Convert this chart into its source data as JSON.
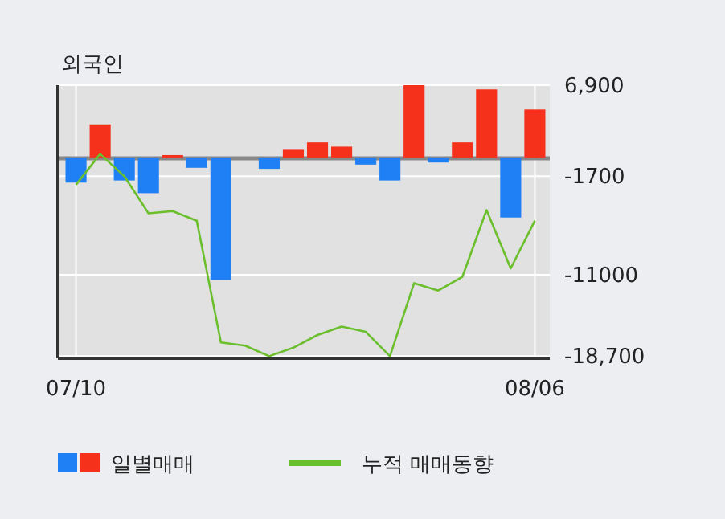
{
  "chart_data": {
    "type": "bar",
    "title": "외국인",
    "categories": [
      "07/10",
      null,
      null,
      null,
      null,
      null,
      null,
      null,
      null,
      null,
      null,
      null,
      null,
      null,
      null,
      null,
      null,
      null,
      null,
      "08/06"
    ],
    "series": [
      {
        "name": "일별매매",
        "colors": [
          "#1f7ff5",
          "#f5311c",
          "#1f7ff5",
          "#1f7ff5",
          "#f5311c",
          "#1f7ff5",
          "#1f7ff5",
          "#1f7ff5",
          "#1f7ff5",
          "#f5311c",
          "#f5311c",
          "#f5311c",
          "#1f7ff5",
          "#1f7ff5",
          "#f5311c",
          "#1f7ff5",
          "#f5311c",
          "#f5311c",
          "#1f7ff5",
          "#f5311c"
        ],
        "values": [
          -2300,
          3200,
          -2100,
          -3300,
          300,
          -900,
          -11500,
          0,
          -1000,
          800,
          1500,
          1100,
          -600,
          -2100,
          6900,
          -400,
          1500,
          6500,
          -5600,
          4600
        ]
      },
      {
        "name": "누적 매매동향",
        "type": "line",
        "color": "#6cbf2c",
        "values": [
          -2500,
          400,
          -1700,
          -5200,
          -5000,
          -5900,
          -17400,
          -17700,
          -18700,
          -17900,
          -16700,
          -15900,
          -16400,
          -18700,
          -11800,
          -12500,
          -11200,
          -4900,
          -10400,
          -5900
        ]
      }
    ],
    "ylim": [
      -18900,
      6900
    ],
    "yticks": [
      {
        "value": 6900,
        "label": "6,900"
      },
      -1700,
      -11000,
      {
        "value": -18700,
        "label": "-18,700"
      }
    ],
    "ref_lines": [
      {
        "axis": "y",
        "value": 0,
        "color": "#888888"
      }
    ],
    "grid": true,
    "legend": "bottom",
    "marker": "none",
    "line_style": "solid"
  }
}
